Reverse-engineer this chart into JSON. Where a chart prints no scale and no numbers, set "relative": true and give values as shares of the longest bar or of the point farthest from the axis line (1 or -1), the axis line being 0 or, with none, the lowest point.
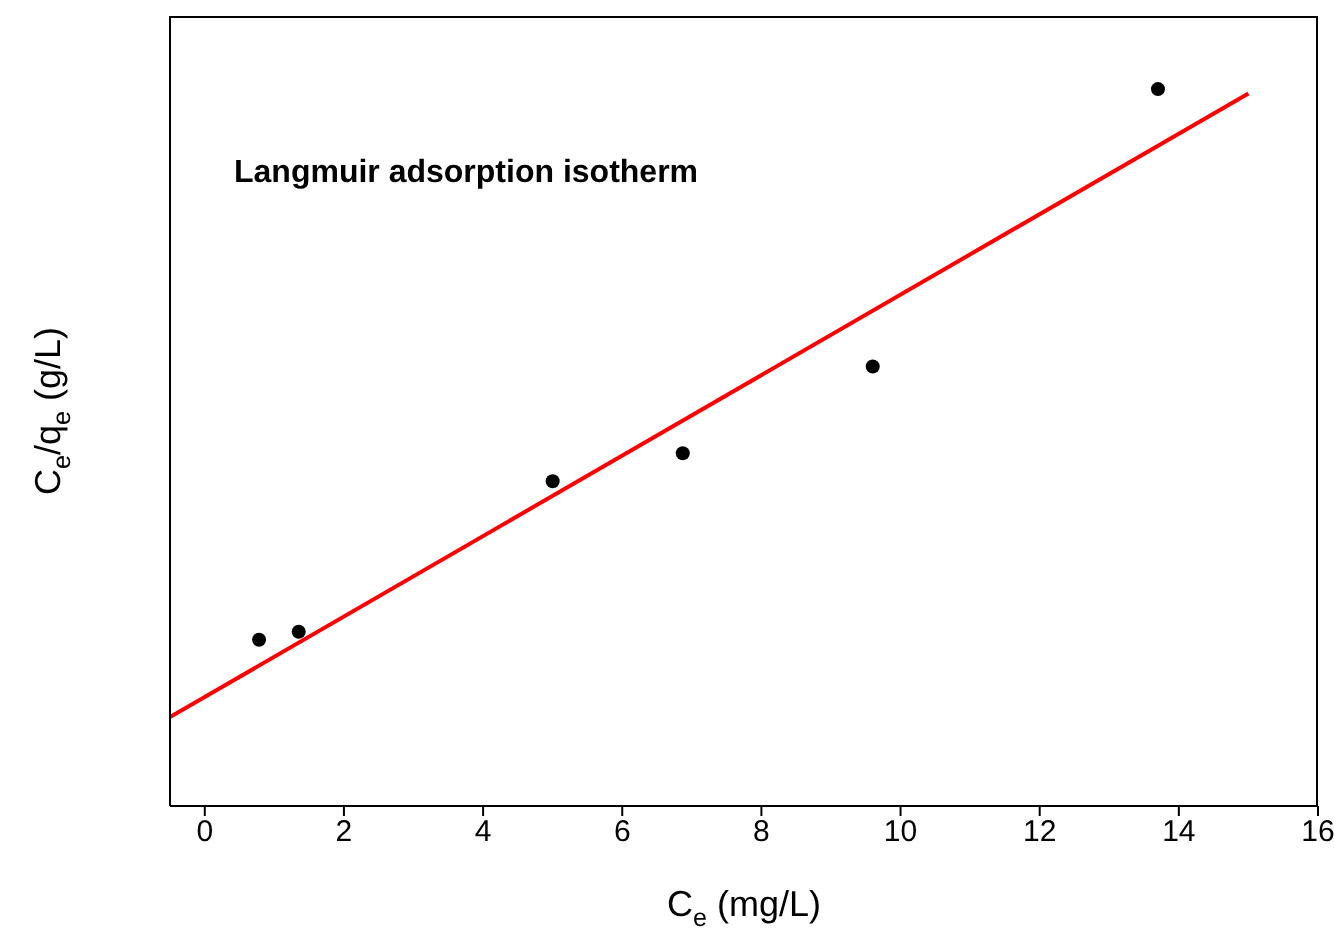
{
  "chart_data": {
    "type": "scatter",
    "relative": true,
    "xlabel": "C$_{e}$ (mg/L)",
    "ylabel": "C$_{e}$/q$_{e}$ (g/L)",
    "annotations": [
      "Langmuir adsorption isotherm"
    ],
    "xlim": [
      -0.5,
      16
    ],
    "xticks": [
      0,
      2,
      4,
      6,
      8,
      10,
      12,
      14,
      16
    ],
    "grid": false,
    "legend": false,
    "series": [
      {
        "marker": "circle",
        "color": "#000000",
        "x": [
          0.78,
          1.35,
          5.0,
          6.87,
          9.6,
          13.7
        ],
        "values": [
          0.232,
          0.243,
          0.453,
          0.492,
          0.613,
          1
        ]
      },
      {
        "type": "line",
        "marker": "none",
        "color": "#ff0000",
        "x": [
          -0.5,
          15
        ],
        "values": [
          0.124,
          0.994
        ]
      }
    ]
  }
}
